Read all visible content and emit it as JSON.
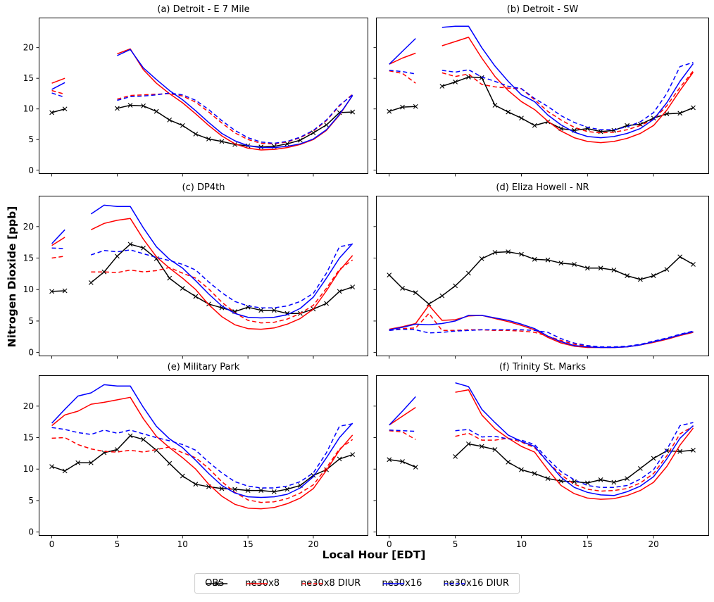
{
  "figure": {
    "xlabel": "Local Hour [EDT]",
    "ylabel": "Nitrogen Dioxide [ppb]",
    "background": "#ffffff",
    "axis_color": "#000000"
  },
  "legend": {
    "items": [
      {
        "label": "OBS",
        "color": "#000000",
        "dash": "solid",
        "marker": "x"
      },
      {
        "label": "ne30x8",
        "color": "#ff0000",
        "dash": "solid",
        "marker": ""
      },
      {
        "label": "ne30x8 DIUR",
        "color": "#ff0000",
        "dash": "dashed",
        "marker": ""
      },
      {
        "label": "ne30x16",
        "color": "#0000ff",
        "dash": "solid",
        "marker": ""
      },
      {
        "label": "ne30x16 DIUR",
        "color": "#0000ff",
        "dash": "dashed",
        "marker": ""
      }
    ]
  },
  "chart_data": {
    "type": "line",
    "xlabel": "Local Hour [EDT]",
    "ylabel": "Nitrogen Dioxide [ppb]",
    "x": [
      0,
      1,
      2,
      3,
      4,
      5,
      6,
      7,
      8,
      9,
      10,
      11,
      12,
      13,
      14,
      15,
      16,
      17,
      18,
      19,
      20,
      21,
      22,
      23
    ],
    "xlim": [
      -1.0,
      24.2
    ],
    "ylim": [
      -0.6,
      24.9
    ],
    "xticks": [
      0,
      5,
      10,
      15,
      20
    ],
    "yticks": [
      0,
      5,
      10,
      15,
      20
    ],
    "grid": false,
    "note": "null entries are missing hours (gaps in the plotted lines)",
    "panels": [
      {
        "title": "(a) Detroit - E 7 Mile",
        "series": {
          "OBS": [
            9.4,
            10.0,
            null,
            null,
            null,
            10.1,
            10.6,
            10.5,
            9.6,
            8.2,
            7.3,
            5.9,
            5.1,
            4.7,
            4.2,
            4.0,
            3.8,
            3.9,
            4.3,
            4.9,
            6.1,
            7.4,
            9.4,
            9.5
          ],
          "ne30x8": [
            14.2,
            15.0,
            null,
            null,
            null,
            19.0,
            19.8,
            16.4,
            14.2,
            12.5,
            11.0,
            9.2,
            7.3,
            5.6,
            4.3,
            3.6,
            3.3,
            3.4,
            3.7,
            4.2,
            5.0,
            6.5,
            9.0,
            12.2
          ],
          "ne30x8 DIUR": [
            13.0,
            12.4,
            null,
            null,
            null,
            11.6,
            12.2,
            12.3,
            12.4,
            12.5,
            12.1,
            11.1,
            9.5,
            7.7,
            6.1,
            5.0,
            4.4,
            4.3,
            4.6,
            5.3,
            6.4,
            8.1,
            10.5,
            12.4
          ],
          "ne30x16": [
            13.2,
            14.3,
            null,
            null,
            null,
            18.7,
            19.7,
            16.7,
            14.8,
            13.0,
            11.5,
            9.7,
            7.8,
            6.0,
            4.8,
            4.0,
            3.7,
            3.7,
            3.9,
            4.3,
            5.1,
            6.6,
            9.1,
            12.2
          ],
          "ne30x16 DIUR": [
            12.6,
            11.9,
            null,
            null,
            null,
            11.4,
            12.0,
            12.1,
            12.3,
            12.6,
            12.3,
            11.4,
            9.9,
            8.1,
            6.5,
            5.3,
            4.6,
            4.4,
            4.7,
            5.4,
            6.5,
            8.2,
            10.6,
            12.3
          ]
        }
      },
      {
        "title": "(b) Detroit - SW",
        "series": {
          "OBS": [
            9.6,
            10.3,
            10.4,
            null,
            13.7,
            14.4,
            15.2,
            15.1,
            10.6,
            9.5,
            8.5,
            7.3,
            7.9,
            6.8,
            6.5,
            6.8,
            6.3,
            6.5,
            7.3,
            7.5,
            8.5,
            9.2,
            9.3,
            10.2
          ],
          "ne30x8": [
            17.3,
            18.3,
            19.1,
            null,
            20.3,
            21.0,
            21.7,
            18.3,
            15.3,
            13.0,
            11.2,
            9.9,
            8.0,
            6.4,
            5.3,
            4.7,
            4.5,
            4.7,
            5.2,
            6.0,
            7.3,
            9.8,
            13.0,
            16.0
          ],
          "ne30x8 DIUR": [
            16.2,
            15.8,
            14.2,
            null,
            15.9,
            15.3,
            15.7,
            14.0,
            13.6,
            13.4,
            13.3,
            11.5,
            9.6,
            8.2,
            7.0,
            6.3,
            6.1,
            6.2,
            6.6,
            7.3,
            8.3,
            10.5,
            13.5,
            16.2
          ],
          "ne30x16": [
            17.3,
            19.4,
            21.5,
            null,
            23.3,
            23.5,
            23.5,
            20.0,
            17.0,
            14.5,
            12.3,
            11.2,
            9.0,
            7.4,
            6.2,
            5.5,
            5.3,
            5.5,
            6.0,
            6.8,
            8.3,
            11.0,
            14.5,
            17.4
          ],
          "ne30x16 DIUR": [
            16.3,
            16.1,
            15.7,
            null,
            16.3,
            16.0,
            16.4,
            15.2,
            14.5,
            13.7,
            13.3,
            11.7,
            10.4,
            8.9,
            7.8,
            7.0,
            6.6,
            6.6,
            7.1,
            7.9,
            9.4,
            12.5,
            16.9,
            17.6
          ]
        }
      },
      {
        "title": "(c) DP4th",
        "series": {
          "OBS": [
            9.7,
            9.8,
            null,
            11.1,
            12.8,
            15.3,
            17.2,
            16.6,
            14.9,
            11.8,
            10.2,
            8.9,
            7.7,
            7.1,
            6.5,
            7.2,
            6.7,
            6.7,
            6.2,
            6.2,
            6.9,
            7.8,
            9.7,
            10.4
          ],
          "ne30x8": [
            17.0,
            18.3,
            null,
            19.5,
            20.5,
            21.0,
            21.3,
            18.0,
            15.2,
            13.4,
            11.8,
            10.0,
            7.6,
            5.7,
            4.4,
            3.8,
            3.7,
            3.9,
            4.5,
            5.4,
            6.9,
            9.8,
            13.0,
            15.4
          ],
          "ne30x8 DIUR": [
            15.0,
            15.3,
            null,
            12.8,
            12.8,
            12.7,
            13.1,
            12.8,
            13.0,
            13.5,
            12.6,
            11.8,
            10.1,
            8.0,
            6.3,
            5.1,
            4.7,
            4.8,
            5.3,
            6.2,
            7.5,
            10.2,
            13.2,
            14.7
          ],
          "ne30x16": [
            17.3,
            19.5,
            null,
            22.0,
            23.4,
            23.2,
            23.2,
            19.8,
            16.8,
            14.8,
            13.4,
            11.4,
            9.3,
            7.4,
            6.2,
            5.6,
            5.5,
            5.6,
            6.0,
            7.0,
            8.8,
            11.8,
            15.0,
            17.3
          ],
          "ne30x16 DIUR": [
            16.6,
            16.5,
            null,
            15.5,
            16.2,
            16.0,
            16.3,
            15.7,
            15.1,
            14.6,
            14.0,
            13.1,
            11.2,
            9.5,
            8.1,
            7.4,
            7.1,
            7.1,
            7.4,
            8.1,
            9.4,
            12.6,
            16.8,
            17.2
          ]
        }
      },
      {
        "title": "(d) Eliza Howell - NR",
        "series": {
          "OBS": [
            12.3,
            10.2,
            9.5,
            7.7,
            9.0,
            10.6,
            12.6,
            14.9,
            15.9,
            16.0,
            15.6,
            14.8,
            14.7,
            14.2,
            14.0,
            13.4,
            13.4,
            13.1,
            12.2,
            11.6,
            12.2,
            13.2,
            15.2,
            14.0
          ],
          "ne30x8": [
            3.7,
            4.1,
            4.6,
            7.5,
            5.1,
            5.2,
            5.8,
            5.9,
            5.4,
            4.9,
            4.3,
            3.6,
            2.4,
            1.5,
            1.0,
            0.8,
            0.8,
            0.8,
            0.9,
            1.2,
            1.6,
            2.1,
            2.7,
            3.2
          ],
          "ne30x8 DIUR": [
            3.5,
            3.8,
            3.9,
            6.2,
            3.5,
            3.5,
            3.6,
            3.6,
            3.5,
            3.5,
            3.4,
            3.2,
            2.6,
            1.9,
            1.3,
            1.0,
            0.8,
            0.8,
            0.9,
            1.2,
            1.7,
            2.2,
            2.8,
            3.3
          ],
          "ne30x16": [
            3.6,
            4.0,
            4.5,
            4.4,
            4.6,
            5.0,
            5.9,
            5.9,
            5.5,
            5.1,
            4.5,
            3.8,
            2.6,
            1.7,
            1.1,
            0.9,
            0.8,
            0.8,
            0.9,
            1.2,
            1.7,
            2.2,
            2.8,
            3.3
          ],
          "ne30x16 DIUR": [
            3.5,
            3.7,
            3.6,
            3.1,
            3.2,
            3.4,
            3.5,
            3.6,
            3.6,
            3.6,
            3.6,
            3.5,
            3.2,
            2.2,
            1.5,
            1.1,
            0.9,
            0.9,
            1.0,
            1.3,
            1.8,
            2.3,
            2.9,
            3.4
          ]
        }
      },
      {
        "title": "(e) Military Park",
        "series": {
          "OBS": [
            10.4,
            9.7,
            11.0,
            11.0,
            12.6,
            13.1,
            15.3,
            14.7,
            13.0,
            10.9,
            8.9,
            7.6,
            7.2,
            6.9,
            6.8,
            6.6,
            6.6,
            6.4,
            6.8,
            7.4,
            9.0,
            9.9,
            11.6,
            12.3
          ],
          "ne30x8": [
            16.9,
            18.6,
            19.2,
            20.3,
            20.6,
            21.0,
            21.4,
            18.0,
            15.2,
            13.4,
            11.8,
            10.0,
            7.6,
            5.7,
            4.4,
            3.8,
            3.7,
            3.9,
            4.5,
            5.4,
            6.9,
            9.8,
            13.0,
            15.4
          ],
          "ne30x8 DIUR": [
            14.9,
            15.0,
            13.9,
            13.2,
            12.8,
            12.7,
            13.0,
            12.7,
            13.1,
            13.5,
            12.6,
            11.8,
            10.1,
            8.0,
            6.3,
            5.1,
            4.7,
            4.8,
            5.3,
            6.2,
            7.5,
            10.2,
            13.2,
            14.7
          ],
          "ne30x16": [
            17.3,
            19.5,
            21.6,
            22.1,
            23.4,
            23.2,
            23.2,
            19.8,
            16.8,
            14.8,
            13.4,
            11.4,
            9.3,
            7.4,
            6.2,
            5.6,
            5.5,
            5.6,
            6.0,
            7.0,
            8.8,
            11.8,
            15.0,
            17.3
          ],
          "ne30x16 DIUR": [
            16.6,
            16.3,
            15.8,
            15.5,
            16.2,
            15.7,
            16.2,
            15.6,
            15.0,
            14.5,
            13.9,
            13.0,
            11.1,
            9.4,
            8.0,
            7.3,
            7.0,
            7.0,
            7.3,
            8.0,
            9.4,
            12.6,
            16.8,
            17.2
          ]
        }
      },
      {
        "title": "(f) Trinity St. Marks",
        "series": {
          "OBS": [
            11.5,
            11.2,
            10.3,
            null,
            null,
            12.0,
            14.0,
            13.6,
            13.1,
            11.1,
            9.9,
            9.3,
            8.5,
            8.1,
            8.0,
            7.8,
            8.3,
            7.9,
            8.5,
            10.1,
            11.7,
            12.9,
            12.8,
            13.0
          ],
          "ne30x8": [
            17.0,
            18.4,
            19.8,
            null,
            null,
            22.2,
            22.6,
            18.6,
            16.4,
            14.9,
            13.6,
            12.7,
            9.9,
            7.4,
            6.1,
            5.4,
            5.2,
            5.3,
            5.8,
            6.6,
            7.9,
            10.4,
            13.8,
            16.5
          ],
          "ne30x8 DIUR": [
            16.1,
            15.9,
            14.7,
            null,
            null,
            15.2,
            15.7,
            14.6,
            14.6,
            14.9,
            14.3,
            13.4,
            11.1,
            9.1,
            7.6,
            6.8,
            6.5,
            6.6,
            6.9,
            7.8,
            9.3,
            12.1,
            15.6,
            16.8
          ],
          "ne30x16": [
            17.0,
            19.2,
            21.5,
            null,
            null,
            23.7,
            23.1,
            19.5,
            17.4,
            15.4,
            14.4,
            13.6,
            11.1,
            8.7,
            7.1,
            6.3,
            5.9,
            5.8,
            6.4,
            7.3,
            8.8,
            11.6,
            14.9,
            16.9
          ],
          "ne30x16 DIUR": [
            16.2,
            16.1,
            16.0,
            null,
            null,
            16.1,
            16.3,
            15.1,
            15.2,
            14.8,
            14.6,
            13.9,
            11.6,
            9.6,
            8.3,
            7.4,
            7.1,
            7.1,
            7.4,
            8.4,
            9.9,
            13.1,
            16.9,
            17.4
          ]
        }
      }
    ]
  }
}
